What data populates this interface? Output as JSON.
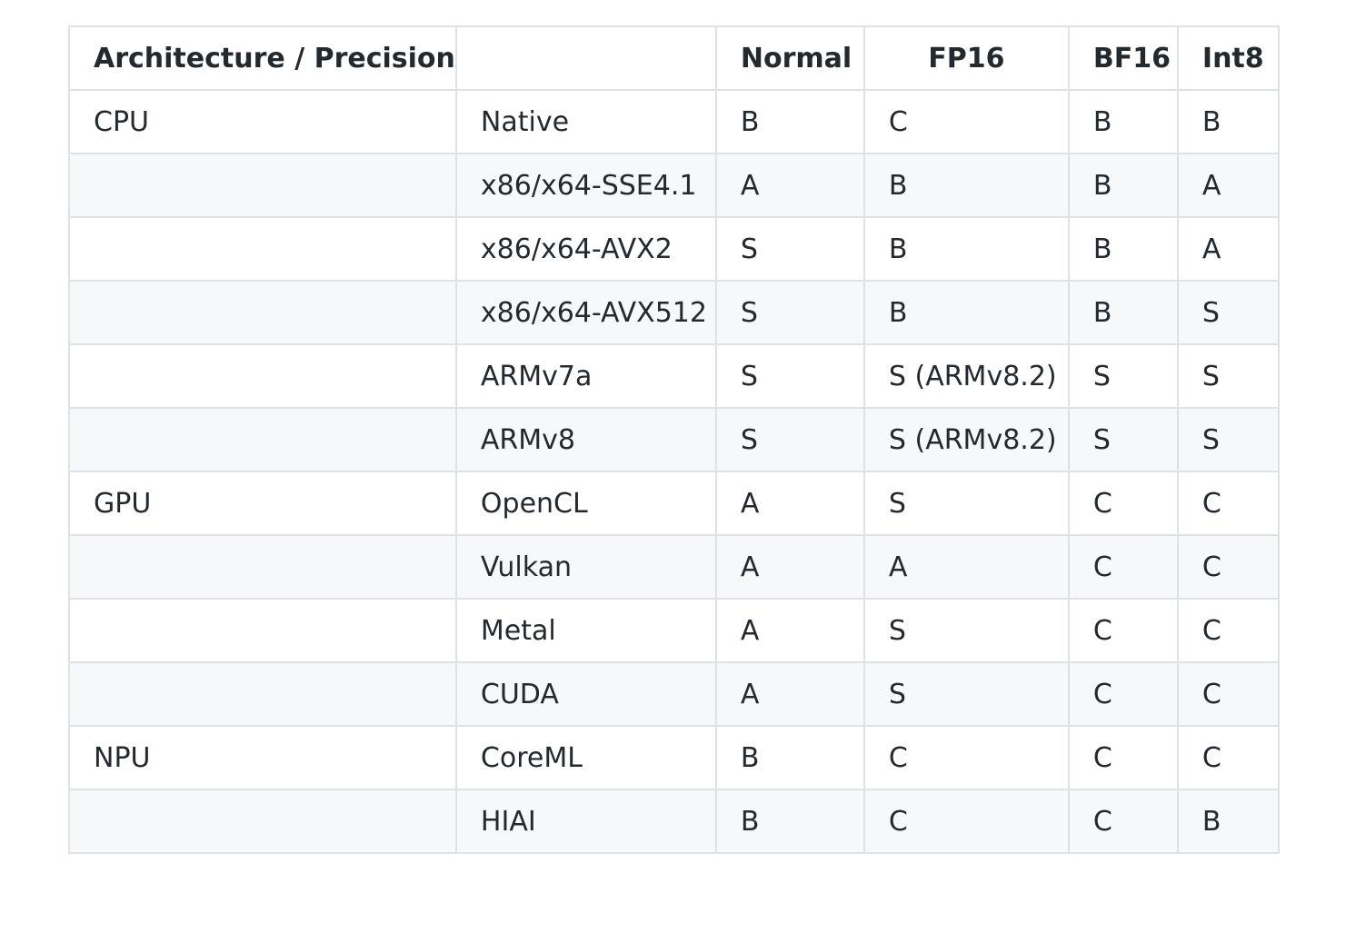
{
  "table": {
    "headers": [
      "Architecture / Precision",
      "",
      "Normal",
      "FP16",
      "BF16",
      "Int8"
    ],
    "rows": [
      [
        "CPU",
        "Native",
        "B",
        "C",
        "B",
        "B"
      ],
      [
        "",
        "x86/x64-SSE4.1",
        "A",
        "B",
        "B",
        "A"
      ],
      [
        "",
        "x86/x64-AVX2",
        "S",
        "B",
        "B",
        "A"
      ],
      [
        "",
        "x86/x64-AVX512",
        "S",
        "B",
        "B",
        "S"
      ],
      [
        "",
        "ARMv7a",
        "S",
        "S (ARMv8.2)",
        "S",
        "S"
      ],
      [
        "",
        "ARMv8",
        "S",
        "S (ARMv8.2)",
        "S",
        "S"
      ],
      [
        "GPU",
        "OpenCL",
        "A",
        "S",
        "C",
        "C"
      ],
      [
        "",
        "Vulkan",
        "A",
        "A",
        "C",
        "C"
      ],
      [
        "",
        "Metal",
        "A",
        "S",
        "C",
        "C"
      ],
      [
        "",
        "CUDA",
        "A",
        "S",
        "C",
        "C"
      ],
      [
        "NPU",
        "CoreML",
        "B",
        "C",
        "C",
        "C"
      ],
      [
        "",
        "HIAI",
        "B",
        "C",
        "C",
        "B"
      ]
    ]
  }
}
